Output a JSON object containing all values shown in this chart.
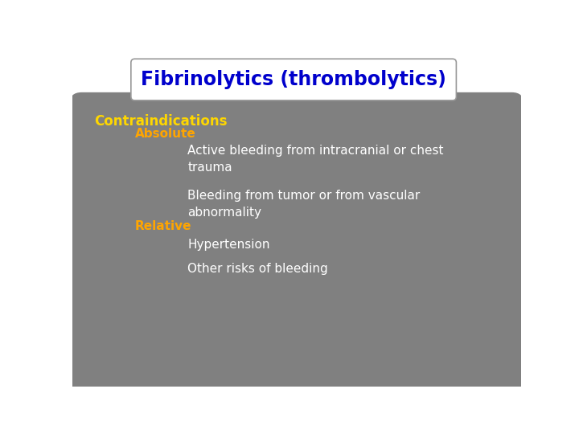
{
  "title": "Fibrinolytics (thrombolytics)",
  "title_color": "#0000CC",
  "title_fontsize": 17,
  "title_box_color": "#ffffff",
  "title_box_edge": "#999999",
  "bg_color": "#ffffff",
  "panel_color": "#808080",
  "contraindications_label": "Contraindications",
  "contraindications_color": "#FFD700",
  "contraindications_fontsize": 12,
  "absolute_label": "Absolute",
  "absolute_color": "#FFA500",
  "absolute_fontsize": 11,
  "relative_label": "Relative",
  "relative_color": "#FFA500",
  "relative_fontsize": 11,
  "bullet_color": "#ffffff",
  "bullet_fontsize": 11,
  "absolute_bullets": [
    "Active bleeding from intracranial or chest\ntrauma",
    "Bleeding from tumor or from vascular\nabnormality"
  ],
  "relative_bullets": [
    "Hypertension",
    "Other risks of bleeding"
  ]
}
